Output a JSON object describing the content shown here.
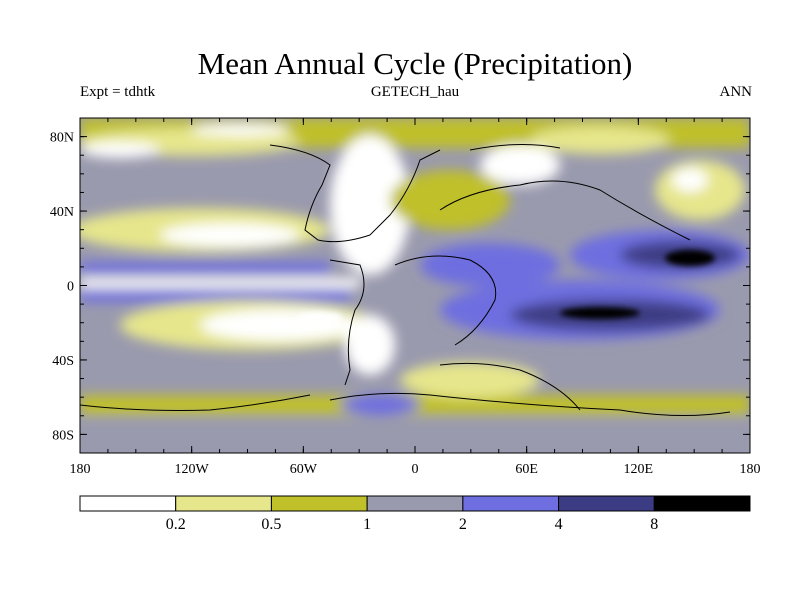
{
  "title": "Mean Annual Cycle (Precipitation)",
  "left_label": "Expt = tdhtk",
  "center_label": "GETECH_hau",
  "right_label": "ANN",
  "lat_labels": [
    "80N",
    "40N",
    "0",
    "40S",
    "80S"
  ],
  "lat_values": [
    80,
    40,
    0,
    -40,
    -80
  ],
  "lon_labels": [
    "180",
    "120W",
    "60W",
    "0",
    "60E",
    "120E",
    "180"
  ],
  "lon_values": [
    -180,
    -120,
    -60,
    0,
    60,
    120,
    180
  ],
  "colorbar": {
    "colors": [
      "#ffffff",
      "#e6e68c",
      "#c0c02a",
      "#9a9aae",
      "#6e6ee0",
      "#3c3c84",
      "#000000"
    ],
    "labels": [
      "0.2",
      "0.5",
      "1",
      "2",
      "4",
      "8"
    ]
  }
}
